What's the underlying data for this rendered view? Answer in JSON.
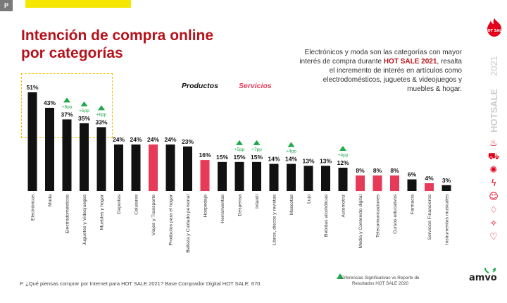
{
  "page_tag": "P",
  "title_line1": "Intención de compra online",
  "title_line2": "por categorías",
  "description": {
    "part1": "Electrónicos y moda son las categorías con mayor interés de compra durante ",
    "highlight": "HOT SALE 2021",
    "part2": ", resalta el incremento de interés en artículos como electrodomésticos, juguetes & videojuegos y muebles & hogar."
  },
  "legend": {
    "products": "Productos",
    "services": "Servicios"
  },
  "colors": {
    "product": "#111111",
    "service": "#e73a59",
    "accent": "#b5121b",
    "up_arrow": "#1fa84a",
    "highlight_box": "#f2c200",
    "yellow_bar": "#f5e700"
  },
  "chart_data": {
    "type": "bar",
    "unit": "%",
    "ylim": [
      0,
      51
    ],
    "grid": false,
    "legend_position": "top-center",
    "categories": [
      "Electrónicos",
      "Moda",
      "Electrodomésticos",
      "Juguetes y Videojuegos",
      "Muebles y hogar",
      "Deportes",
      "Celulares",
      "Viajes y Transporte",
      "Productos para el hogar",
      "Belleza y Cuidado personal",
      "Hospedaje",
      "Herramientas",
      "Despensa",
      "Infantil",
      "Libros, discos y revistas",
      "Mascotas",
      "Lujo",
      "Bebidas alcohólicas",
      "Automotriz",
      "Media y Contenido digital",
      "Telecomunicaciones",
      "Cursos educativos",
      "Farmacia",
      "Servicios Financieros",
      "Instrumentos musicales"
    ],
    "values": [
      51,
      43,
      37,
      35,
      33,
      24,
      24,
      24,
      24,
      23,
      16,
      15,
      15,
      15,
      14,
      14,
      13,
      13,
      12,
      8,
      8,
      8,
      6,
      4,
      3
    ],
    "value_labels": [
      "51%",
      "43%",
      "37%",
      "35%",
      "33%",
      "24%",
      "24%",
      "24%",
      "24%",
      "23%",
      "16%",
      "15%",
      "15%",
      "15%",
      "14%",
      "14%",
      "13%",
      "13%",
      "12%",
      "8%",
      "8%",
      "8%",
      "6%",
      "4%",
      "3%"
    ],
    "types": [
      "product",
      "product",
      "product",
      "product",
      "product",
      "product",
      "product",
      "service",
      "product",
      "product",
      "service",
      "product",
      "product",
      "product",
      "product",
      "product",
      "product",
      "product",
      "product",
      "service",
      "service",
      "service",
      "product",
      "service",
      "product"
    ],
    "increments": [
      {
        "index": 2,
        "label": "+8pp"
      },
      {
        "index": 3,
        "label": "+5pp"
      },
      {
        "index": 4,
        "label": "+6pp"
      },
      {
        "index": 12,
        "label": "+5pp"
      },
      {
        "index": 13,
        "label": "+7pp"
      },
      {
        "index": 15,
        "label": "+4pp"
      },
      {
        "index": 18,
        "label": "+4pp"
      }
    ]
  },
  "footnote": "P. ¿Qué piensas comprar por Internet para HOT SALE 2021? Base Comprador Digital HOT SALE: 670.",
  "diff_note": "Diferencias Significativas vs Reporte de Resultados HOT SALE 2020",
  "amvo_logo": "amvo",
  "hotsale_logo": "HOT SALE",
  "hotsale_vertical": {
    "brand": "HOTSALE",
    "year": "2021"
  },
  "side_icons": [
    "flame-icon",
    "cart-icon",
    "discount-icon",
    "lightning-icon",
    "smile-icon",
    "diamond-icon",
    "sparkle-icon",
    "heart-icon"
  ]
}
